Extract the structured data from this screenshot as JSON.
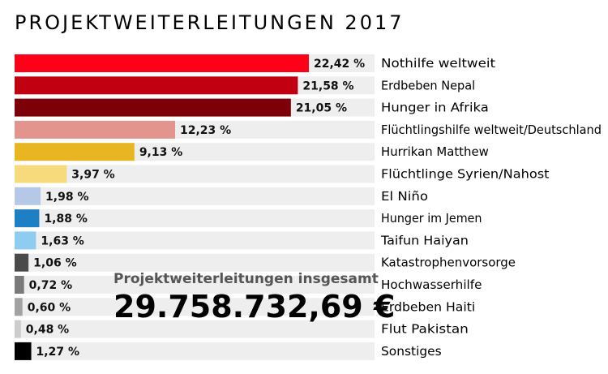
{
  "chart_data": {
    "type": "bar",
    "orientation": "horizontal",
    "title": "PROJEKTWEITERLEITUNGEN 2017",
    "xlabel": "",
    "ylabel": "",
    "unit": "%",
    "xlim": [
      0,
      25
    ],
    "categories": [
      "Nothilfe weltweit",
      "Erdbeben Nepal",
      "Hunger in Afrika",
      "Flüchtlingshilfe weltweit/Deutschland",
      "Hurrikan Matthew",
      "Flüchtlinge Syrien/Nahost",
      "El Niño",
      "Hunger im Jemen",
      "Taifun Haiyan",
      "Katastrophenvorsorge",
      "Hochwasserhilfe",
      "Erdbeben Haiti",
      "Flut Pakistan",
      "Sonstiges"
    ],
    "values": [
      22.42,
      21.58,
      21.05,
      12.23,
      9.13,
      3.97,
      1.98,
      1.88,
      1.63,
      1.06,
      0.72,
      0.6,
      0.48,
      1.27
    ],
    "value_labels": [
      "22,42 %",
      "21,58 %",
      "21,05 %",
      "12,23 %",
      "9,13 %",
      "3,97 %",
      "1,98 %",
      "1,88 %",
      "1,63 %",
      "1,06 %",
      "0,72 %",
      "0,60 %",
      "0,48 %",
      "1,27 %"
    ],
    "colors": [
      "#ff0019",
      "#c10012",
      "#7d0008",
      "#e3948d",
      "#e8b523",
      "#f6da7b",
      "#b5c9e6",
      "#1f7fc4",
      "#8ecdf0",
      "#4a4a4a",
      "#7a7a7a",
      "#a2a2a2",
      "#cccccc",
      "#000000"
    ],
    "track_color": "#eeeeee"
  },
  "summary": {
    "label": "Projektweiterleitungen insgesamt",
    "total": "29.758.732,69 €"
  }
}
